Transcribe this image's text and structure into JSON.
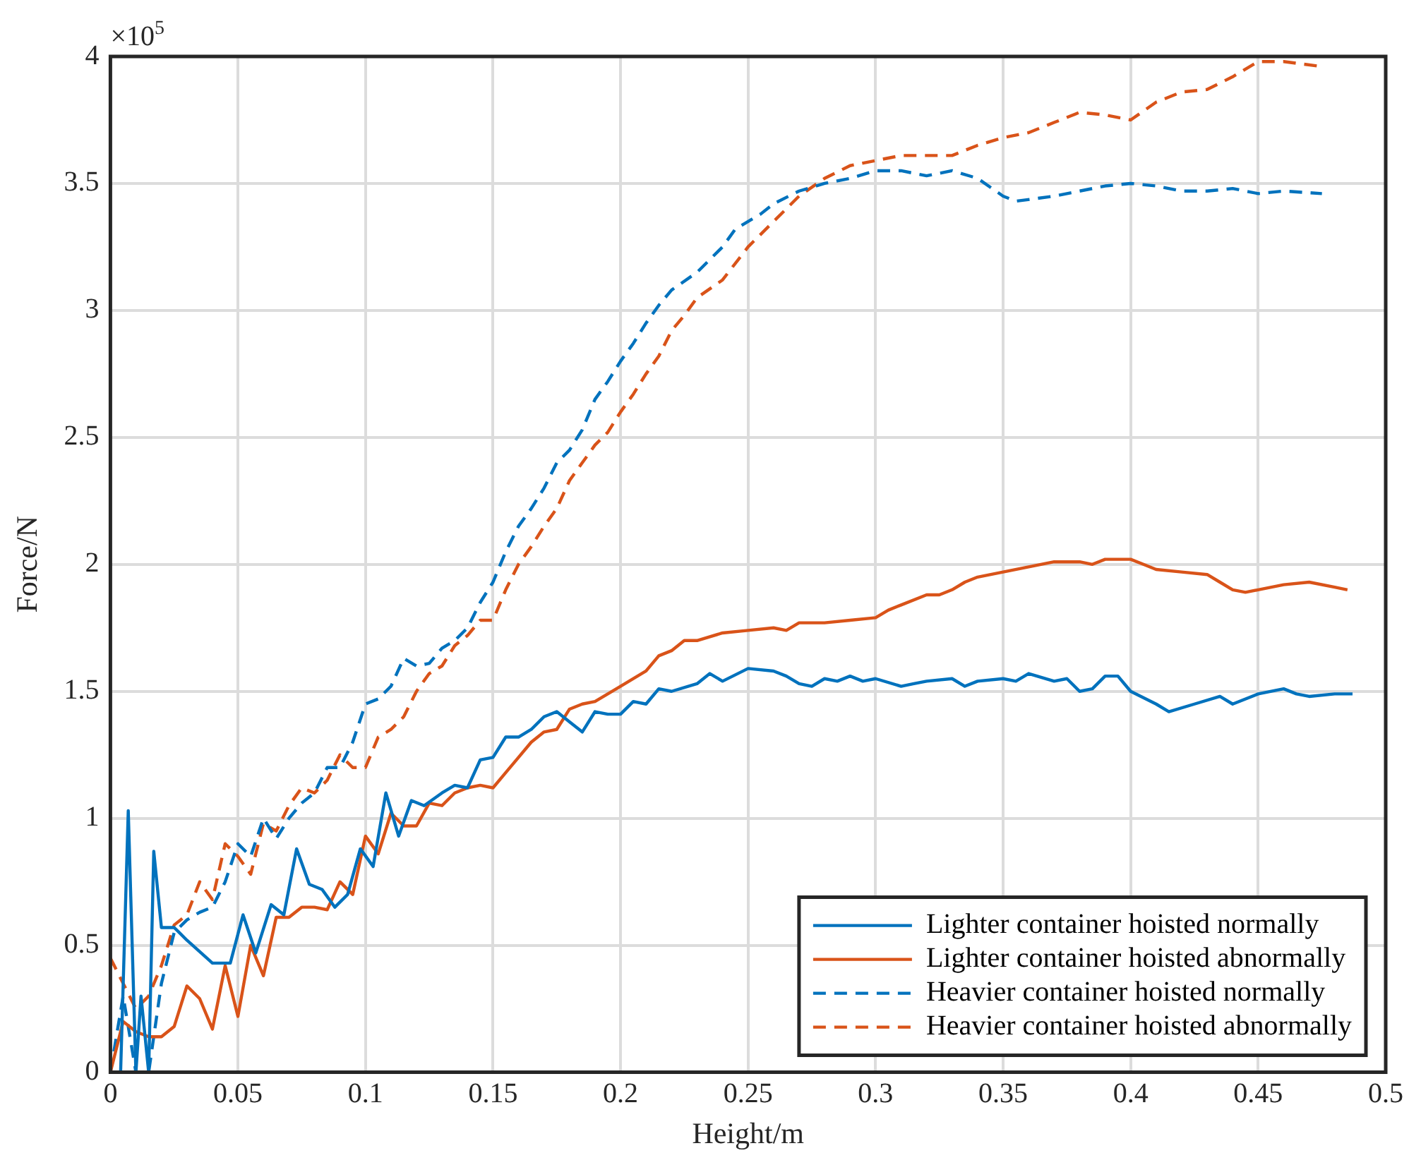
{
  "chart_data": {
    "type": "line",
    "xlabel": "Height/m",
    "ylabel": "Force/N",
    "annotations": [
      "×10$^{5}$"
    ],
    "xlim": [
      0,
      0.5
    ],
    "xticks": [
      0,
      0.05,
      0.1,
      0.15,
      0.2,
      0.25,
      0.3,
      0.35,
      0.4,
      0.45,
      0.5
    ],
    "ylim": [
      0,
      4
    ],
    "yticks": [
      0,
      0.5,
      1,
      1.5,
      2,
      2.5,
      3,
      3.5,
      4
    ],
    "grid": true,
    "legend": "bottom right",
    "marker": "none",
    "series": [
      {
        "name": "Lighter container hoisted normally",
        "color": "#0072bd",
        "line_style": "solid",
        "x": [
          0,
          0.004,
          0.007,
          0.01,
          0.012,
          0.015,
          0.017,
          0.02,
          0.025,
          0.03,
          0.04,
          0.047,
          0.052,
          0.057,
          0.063,
          0.068,
          0.073,
          0.078,
          0.083,
          0.088,
          0.093,
          0.098,
          0.103,
          0.108,
          0.113,
          0.118,
          0.123,
          0.13,
          0.135,
          0.14,
          0.145,
          0.15,
          0.155,
          0.16,
          0.165,
          0.17,
          0.175,
          0.18,
          0.185,
          0.19,
          0.195,
          0.2,
          0.205,
          0.21,
          0.215,
          0.22,
          0.23,
          0.235,
          0.24,
          0.25,
          0.26,
          0.265,
          0.27,
          0.275,
          0.28,
          0.285,
          0.29,
          0.295,
          0.3,
          0.31,
          0.315,
          0.32,
          0.33,
          0.335,
          0.34,
          0.35,
          0.355,
          0.36,
          0.37,
          0.375,
          0.38,
          0.385,
          0.39,
          0.395,
          0.4,
          0.41,
          0.415,
          0.425,
          0.435,
          0.44,
          0.45,
          0.46,
          0.465,
          0.47,
          0.48,
          0.487
        ],
        "values": [
          0,
          0,
          1.03,
          0,
          0.3,
          0,
          0.87,
          0.57,
          0.57,
          0.52,
          0.43,
          0.43,
          0.62,
          0.47,
          0.66,
          0.62,
          0.88,
          0.74,
          0.72,
          0.65,
          0.7,
          0.88,
          0.81,
          1.1,
          0.93,
          1.07,
          1.05,
          1.1,
          1.13,
          1.12,
          1.23,
          1.24,
          1.32,
          1.32,
          1.35,
          1.4,
          1.42,
          1.38,
          1.34,
          1.42,
          1.41,
          1.41,
          1.46,
          1.45,
          1.51,
          1.5,
          1.53,
          1.57,
          1.54,
          1.59,
          1.58,
          1.56,
          1.53,
          1.52,
          1.55,
          1.54,
          1.56,
          1.54,
          1.55,
          1.52,
          1.53,
          1.54,
          1.55,
          1.52,
          1.54,
          1.55,
          1.54,
          1.57,
          1.54,
          1.55,
          1.5,
          1.51,
          1.56,
          1.56,
          1.5,
          1.45,
          1.42,
          1.45,
          1.48,
          1.45,
          1.49,
          1.51,
          1.49,
          1.48,
          1.49,
          1.49
        ]
      },
      {
        "name": "Lighter container hoisted abnormally",
        "color": "#d95319",
        "line_style": "solid",
        "x": [
          0,
          0.005,
          0.01,
          0.015,
          0.02,
          0.025,
          0.03,
          0.035,
          0.04,
          0.045,
          0.05,
          0.055,
          0.06,
          0.065,
          0.07,
          0.075,
          0.08,
          0.085,
          0.09,
          0.095,
          0.1,
          0.105,
          0.11,
          0.115,
          0.12,
          0.125,
          0.13,
          0.135,
          0.14,
          0.145,
          0.15,
          0.155,
          0.16,
          0.165,
          0.17,
          0.175,
          0.18,
          0.185,
          0.19,
          0.2,
          0.21,
          0.215,
          0.22,
          0.225,
          0.23,
          0.24,
          0.25,
          0.26,
          0.265,
          0.27,
          0.28,
          0.29,
          0.3,
          0.305,
          0.31,
          0.32,
          0.325,
          0.33,
          0.335,
          0.34,
          0.35,
          0.36,
          0.37,
          0.38,
          0.385,
          0.39,
          0.4,
          0.405,
          0.41,
          0.42,
          0.43,
          0.435,
          0.44,
          0.445,
          0.45,
          0.46,
          0.47,
          0.48,
          0.485
        ],
        "values": [
          0,
          0.2,
          0.16,
          0.14,
          0.14,
          0.18,
          0.34,
          0.29,
          0.17,
          0.42,
          0.22,
          0.5,
          0.38,
          0.61,
          0.61,
          0.65,
          0.65,
          0.64,
          0.75,
          0.7,
          0.93,
          0.86,
          1.02,
          0.97,
          0.97,
          1.06,
          1.05,
          1.1,
          1.12,
          1.13,
          1.12,
          1.18,
          1.24,
          1.3,
          1.34,
          1.35,
          1.43,
          1.45,
          1.46,
          1.52,
          1.58,
          1.64,
          1.66,
          1.7,
          1.7,
          1.73,
          1.74,
          1.75,
          1.74,
          1.77,
          1.77,
          1.78,
          1.79,
          1.82,
          1.84,
          1.88,
          1.88,
          1.9,
          1.93,
          1.95,
          1.97,
          1.99,
          2.01,
          2.01,
          2,
          2.02,
          2.02,
          2,
          1.98,
          1.97,
          1.96,
          1.93,
          1.9,
          1.89,
          1.9,
          1.92,
          1.93,
          1.91,
          1.9
        ]
      },
      {
        "name": "Heavier container hoisted normally",
        "color": "#0072bd",
        "line_style": "dashed",
        "x": [
          0,
          0.005,
          0.01,
          0.015,
          0.02,
          0.025,
          0.03,
          0.035,
          0.04,
          0.045,
          0.05,
          0.055,
          0.06,
          0.065,
          0.07,
          0.075,
          0.08,
          0.085,
          0.09,
          0.095,
          0.1,
          0.105,
          0.11,
          0.115,
          0.12,
          0.125,
          0.13,
          0.135,
          0.14,
          0.145,
          0.15,
          0.155,
          0.16,
          0.165,
          0.17,
          0.175,
          0.18,
          0.185,
          0.19,
          0.195,
          0.2,
          0.205,
          0.21,
          0.215,
          0.22,
          0.23,
          0.24,
          0.245,
          0.255,
          0.26,
          0.27,
          0.28,
          0.29,
          0.3,
          0.31,
          0.32,
          0.33,
          0.34,
          0.35,
          0.355,
          0.37,
          0.38,
          0.39,
          0.4,
          0.41,
          0.42,
          0.43,
          0.44,
          0.45,
          0.46,
          0.475
        ],
        "values": [
          0,
          0.3,
          0,
          0,
          0.35,
          0.55,
          0.6,
          0.63,
          0.65,
          0.75,
          0.9,
          0.85,
          1,
          0.92,
          1,
          1.06,
          1.1,
          1.2,
          1.2,
          1.3,
          1.45,
          1.47,
          1.52,
          1.63,
          1.6,
          1.61,
          1.67,
          1.7,
          1.75,
          1.85,
          1.93,
          2.05,
          2.15,
          2.22,
          2.3,
          2.4,
          2.45,
          2.53,
          2.65,
          2.72,
          2.8,
          2.87,
          2.95,
          3.02,
          3.08,
          3.15,
          3.25,
          3.32,
          3.38,
          3.42,
          3.47,
          3.5,
          3.52,
          3.55,
          3.55,
          3.53,
          3.55,
          3.52,
          3.45,
          3.43,
          3.45,
          3.47,
          3.49,
          3.5,
          3.49,
          3.47,
          3.47,
          3.48,
          3.46,
          3.47,
          3.46
        ]
      },
      {
        "name": "Heavier container hoisted abnormally",
        "color": "#d95319",
        "line_style": "dashed",
        "x": [
          0,
          0.005,
          0.01,
          0.015,
          0.02,
          0.025,
          0.03,
          0.035,
          0.04,
          0.045,
          0.05,
          0.055,
          0.06,
          0.065,
          0.07,
          0.075,
          0.08,
          0.085,
          0.09,
          0.095,
          0.1,
          0.105,
          0.11,
          0.115,
          0.12,
          0.125,
          0.13,
          0.135,
          0.14,
          0.145,
          0.15,
          0.155,
          0.16,
          0.165,
          0.17,
          0.175,
          0.18,
          0.185,
          0.19,
          0.195,
          0.2,
          0.205,
          0.21,
          0.215,
          0.22,
          0.225,
          0.23,
          0.24,
          0.25,
          0.26,
          0.27,
          0.28,
          0.29,
          0.3,
          0.31,
          0.32,
          0.33,
          0.34,
          0.35,
          0.36,
          0.37,
          0.38,
          0.39,
          0.4,
          0.41,
          0.42,
          0.43,
          0.44,
          0.45,
          0.46,
          0.475
        ],
        "values": [
          0.45,
          0.35,
          0.25,
          0.3,
          0.42,
          0.58,
          0.62,
          0.75,
          0.68,
          0.9,
          0.85,
          0.78,
          0.98,
          0.95,
          1.05,
          1.12,
          1.1,
          1.15,
          1.25,
          1.2,
          1.2,
          1.32,
          1.35,
          1.4,
          1.5,
          1.57,
          1.6,
          1.68,
          1.72,
          1.78,
          1.78,
          1.9,
          2,
          2.07,
          2.15,
          2.22,
          2.33,
          2.4,
          2.47,
          2.52,
          2.6,
          2.67,
          2.75,
          2.82,
          2.92,
          2.98,
          3.05,
          3.12,
          3.25,
          3.35,
          3.45,
          3.52,
          3.57,
          3.59,
          3.61,
          3.61,
          3.61,
          3.65,
          3.68,
          3.7,
          3.74,
          3.78,
          3.77,
          3.75,
          3.82,
          3.86,
          3.87,
          3.92,
          3.98,
          3.98,
          3.96
        ]
      }
    ]
  }
}
